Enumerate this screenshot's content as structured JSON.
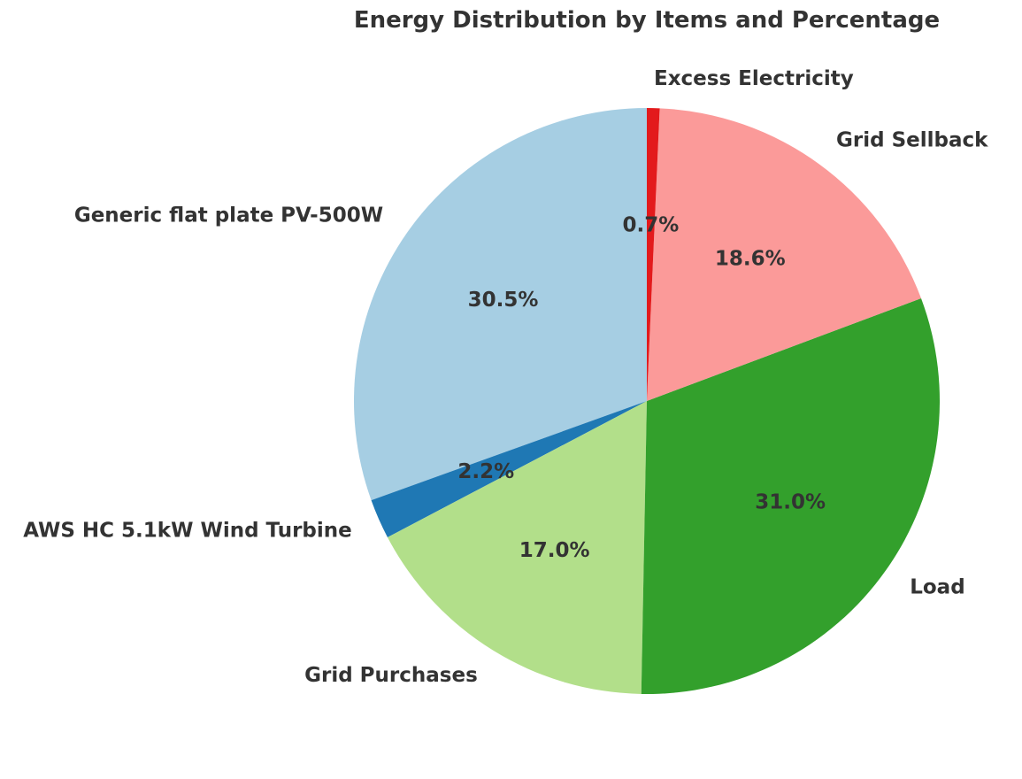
{
  "chart_data": {
    "type": "pie",
    "title": "Energy Distribution by Items and Percentage",
    "start_angle_deg": 90,
    "direction": "counterclockwise",
    "slices": [
      {
        "label": "Generic flat plate PV-500W",
        "value": 30.5,
        "pct_label": "30.5%",
        "color": "#a6cee3"
      },
      {
        "label": "AWS HC 5.1kW Wind Turbine",
        "value": 2.2,
        "pct_label": "2.2%",
        "color": "#1f78b4"
      },
      {
        "label": "Grid Purchases",
        "value": 17.0,
        "pct_label": "17.0%",
        "color": "#b2df8a"
      },
      {
        "label": "Load",
        "value": 31.0,
        "pct_label": "31.0%",
        "color": "#33a02c"
      },
      {
        "label": "Grid Sellback",
        "value": 18.6,
        "pct_label": "18.6%",
        "color": "#fb9a99"
      },
      {
        "label": "Excess Electricity",
        "value": 0.7,
        "pct_label": "0.7%",
        "color": "#e31a1c"
      }
    ]
  }
}
